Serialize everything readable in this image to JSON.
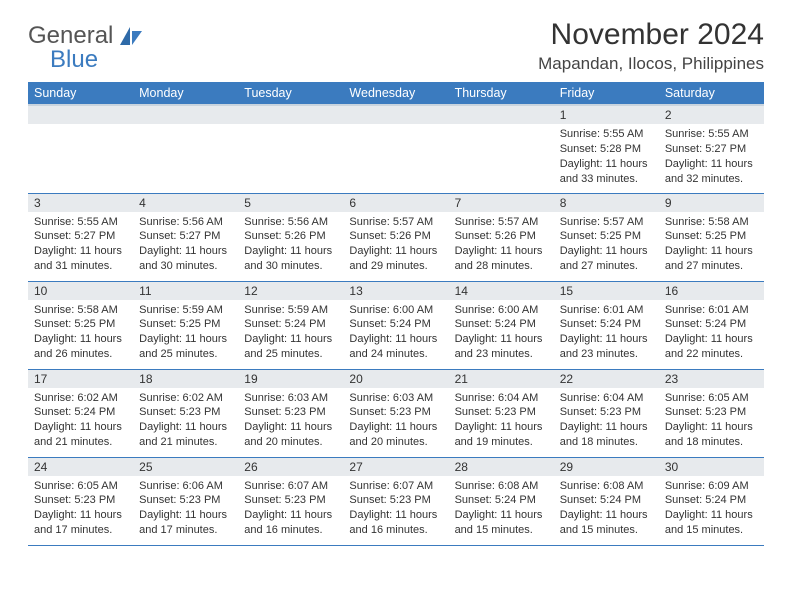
{
  "brand": {
    "text1": "General",
    "text2": "Blue"
  },
  "title": "November 2024",
  "location": "Mapandan, Ilocos, Philippines",
  "colors": {
    "header_bg": "#3b7bbf",
    "header_text": "#ffffff",
    "daynum_bg": "#e7eaed",
    "border": "#3b7bbf",
    "text": "#333333",
    "page_bg": "#ffffff"
  },
  "typography": {
    "title_fontsize": 30,
    "location_fontsize": 17,
    "th_fontsize": 12.5,
    "daynum_fontsize": 12,
    "body_fontsize": 11
  },
  "weekdays": [
    "Sunday",
    "Monday",
    "Tuesday",
    "Wednesday",
    "Thursday",
    "Friday",
    "Saturday"
  ],
  "weeks": [
    [
      null,
      null,
      null,
      null,
      null,
      {
        "n": "1",
        "sr": "5:55 AM",
        "ss": "5:28 PM",
        "dl": "11 hours and 33 minutes."
      },
      {
        "n": "2",
        "sr": "5:55 AM",
        "ss": "5:27 PM",
        "dl": "11 hours and 32 minutes."
      }
    ],
    [
      {
        "n": "3",
        "sr": "5:55 AM",
        "ss": "5:27 PM",
        "dl": "11 hours and 31 minutes."
      },
      {
        "n": "4",
        "sr": "5:56 AM",
        "ss": "5:27 PM",
        "dl": "11 hours and 30 minutes."
      },
      {
        "n": "5",
        "sr": "5:56 AM",
        "ss": "5:26 PM",
        "dl": "11 hours and 30 minutes."
      },
      {
        "n": "6",
        "sr": "5:57 AM",
        "ss": "5:26 PM",
        "dl": "11 hours and 29 minutes."
      },
      {
        "n": "7",
        "sr": "5:57 AM",
        "ss": "5:26 PM",
        "dl": "11 hours and 28 minutes."
      },
      {
        "n": "8",
        "sr": "5:57 AM",
        "ss": "5:25 PM",
        "dl": "11 hours and 27 minutes."
      },
      {
        "n": "9",
        "sr": "5:58 AM",
        "ss": "5:25 PM",
        "dl": "11 hours and 27 minutes."
      }
    ],
    [
      {
        "n": "10",
        "sr": "5:58 AM",
        "ss": "5:25 PM",
        "dl": "11 hours and 26 minutes."
      },
      {
        "n": "11",
        "sr": "5:59 AM",
        "ss": "5:25 PM",
        "dl": "11 hours and 25 minutes."
      },
      {
        "n": "12",
        "sr": "5:59 AM",
        "ss": "5:24 PM",
        "dl": "11 hours and 25 minutes."
      },
      {
        "n": "13",
        "sr": "6:00 AM",
        "ss": "5:24 PM",
        "dl": "11 hours and 24 minutes."
      },
      {
        "n": "14",
        "sr": "6:00 AM",
        "ss": "5:24 PM",
        "dl": "11 hours and 23 minutes."
      },
      {
        "n": "15",
        "sr": "6:01 AM",
        "ss": "5:24 PM",
        "dl": "11 hours and 23 minutes."
      },
      {
        "n": "16",
        "sr": "6:01 AM",
        "ss": "5:24 PM",
        "dl": "11 hours and 22 minutes."
      }
    ],
    [
      {
        "n": "17",
        "sr": "6:02 AM",
        "ss": "5:24 PM",
        "dl": "11 hours and 21 minutes."
      },
      {
        "n": "18",
        "sr": "6:02 AM",
        "ss": "5:23 PM",
        "dl": "11 hours and 21 minutes."
      },
      {
        "n": "19",
        "sr": "6:03 AM",
        "ss": "5:23 PM",
        "dl": "11 hours and 20 minutes."
      },
      {
        "n": "20",
        "sr": "6:03 AM",
        "ss": "5:23 PM",
        "dl": "11 hours and 20 minutes."
      },
      {
        "n": "21",
        "sr": "6:04 AM",
        "ss": "5:23 PM",
        "dl": "11 hours and 19 minutes."
      },
      {
        "n": "22",
        "sr": "6:04 AM",
        "ss": "5:23 PM",
        "dl": "11 hours and 18 minutes."
      },
      {
        "n": "23",
        "sr": "6:05 AM",
        "ss": "5:23 PM",
        "dl": "11 hours and 18 minutes."
      }
    ],
    [
      {
        "n": "24",
        "sr": "6:05 AM",
        "ss": "5:23 PM",
        "dl": "11 hours and 17 minutes."
      },
      {
        "n": "25",
        "sr": "6:06 AM",
        "ss": "5:23 PM",
        "dl": "11 hours and 17 minutes."
      },
      {
        "n": "26",
        "sr": "6:07 AM",
        "ss": "5:23 PM",
        "dl": "11 hours and 16 minutes."
      },
      {
        "n": "27",
        "sr": "6:07 AM",
        "ss": "5:23 PM",
        "dl": "11 hours and 16 minutes."
      },
      {
        "n": "28",
        "sr": "6:08 AM",
        "ss": "5:24 PM",
        "dl": "11 hours and 15 minutes."
      },
      {
        "n": "29",
        "sr": "6:08 AM",
        "ss": "5:24 PM",
        "dl": "11 hours and 15 minutes."
      },
      {
        "n": "30",
        "sr": "6:09 AM",
        "ss": "5:24 PM",
        "dl": "11 hours and 15 minutes."
      }
    ]
  ],
  "labels": {
    "sunrise": "Sunrise:",
    "sunset": "Sunset:",
    "daylight": "Daylight:"
  }
}
